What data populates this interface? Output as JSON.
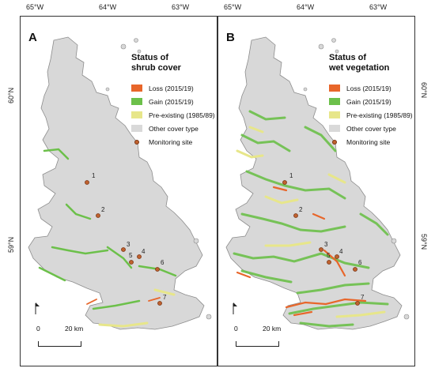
{
  "graticule": {
    "top_left": [
      "65°W",
      "64°W",
      "63°W"
    ],
    "top_right": [
      "65°W",
      "64°W",
      "63°W"
    ],
    "left": [
      "60°N",
      "59°N"
    ],
    "right": [
      "60°N",
      "59°N"
    ]
  },
  "panels": [
    {
      "letter": "A",
      "legend_title_1": "Status of",
      "legend_title_2": "shrub cover",
      "legend": [
        {
          "label": "Loss (2015/19)",
          "color": "#e8662a"
        },
        {
          "label": "Gain (2015/19)",
          "color": "#6cc04a"
        },
        {
          "label": "Pre-existing (1985/89)",
          "color": "#e7e68a"
        },
        {
          "label": "Other cover type",
          "color": "#d9d9d9"
        },
        {
          "label": "Monitoring site",
          "color": "#c0622f"
        }
      ],
      "scale": {
        "start": "0",
        "end": "20 km"
      }
    },
    {
      "letter": "B",
      "legend_title_1": "Status of",
      "legend_title_2": "wet vegetation",
      "legend": [
        {
          "label": "Loss (2015/19)",
          "color": "#e8662a"
        },
        {
          "label": "Gain (2015/19)",
          "color": "#6cc04a"
        },
        {
          "label": "Pre-existing (1985/89)",
          "color": "#e7e68a"
        },
        {
          "label": "Other cover type",
          "color": "#d9d9d9"
        },
        {
          "label": "Monitoring site",
          "color": "#c0622f"
        }
      ],
      "scale": {
        "start": "0",
        "end": "20 km"
      }
    }
  ],
  "sites": [
    "1",
    "2",
    "3",
    "4",
    "5",
    "6",
    "7"
  ]
}
